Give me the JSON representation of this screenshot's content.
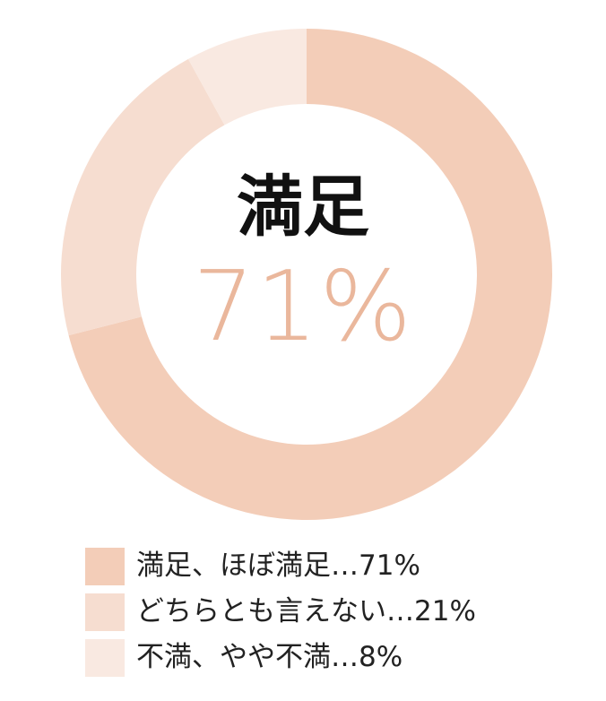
{
  "chart_data": {
    "type": "pie",
    "donut": true,
    "title": "",
    "center_text": {
      "title": "満足",
      "value": "71%"
    },
    "categories": [
      "満足、ほぼ満足",
      "どちらとも言えない",
      "不満、やや不満"
    ],
    "values": [
      71,
      21,
      8
    ],
    "colors": [
      "#F3CDB8",
      "#F6DDD0",
      "#F9E9E1"
    ],
    "legend_labels": [
      "満足、ほぼ満足…71%",
      "どちらとも言えない…21%",
      "不満、やや不満…8%"
    ],
    "legend_position": "bottom-left"
  }
}
